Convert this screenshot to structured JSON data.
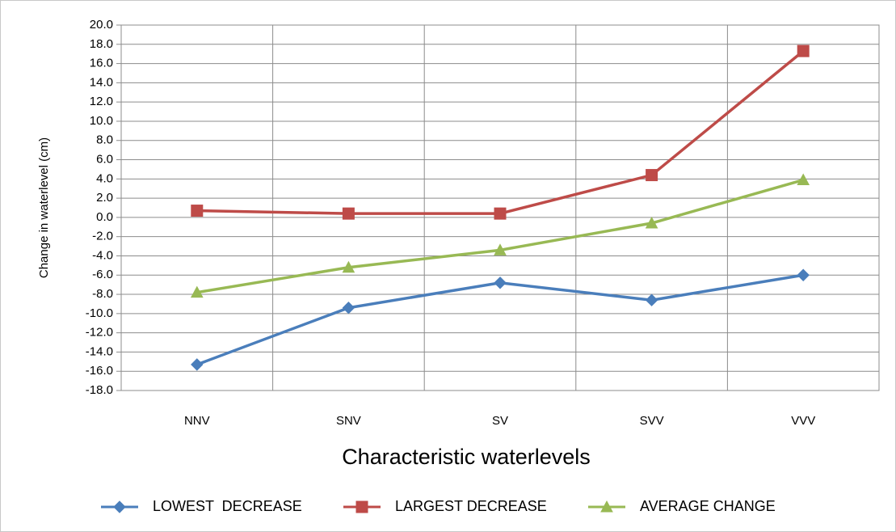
{
  "chart_data": {
    "type": "line",
    "x_label": "Characteristic waterlevels",
    "y_label": "Change in waterlevel (cm)",
    "categories": [
      "NNV",
      "SNV",
      "SV",
      "SVV",
      "VVV"
    ],
    "series": [
      {
        "name": "LOWEST  DECREASE",
        "color": "#4a7ebb",
        "marker": "diamond",
        "values": [
          -15.3,
          -9.4,
          -6.8,
          -8.6,
          -6.0
        ]
      },
      {
        "name": "LARGEST DECREASE",
        "color": "#be4b48",
        "marker": "square",
        "values": [
          0.7,
          0.4,
          0.4,
          4.4,
          17.3
        ]
      },
      {
        "name": "AVERAGE CHANGE",
        "color": "#98b954",
        "marker": "triangle",
        "values": [
          -7.8,
          -5.2,
          -3.4,
          -0.6,
          3.9
        ]
      }
    ],
    "ylim": [
      -18,
      20
    ],
    "yticks": [
      {
        "value": 20,
        "label": "20.0"
      },
      {
        "value": 18,
        "label": "18.0"
      },
      {
        "value": 16,
        "label": "16.0"
      },
      {
        "value": 14,
        "label": "14.0"
      },
      {
        "value": 12,
        "label": "12.0"
      },
      {
        "value": 10,
        "label": "10.0"
      },
      {
        "value": 8,
        "label": "8.0"
      },
      {
        "value": 6,
        "label": "6.0"
      },
      {
        "value": 4,
        "label": "4.0"
      },
      {
        "value": 2,
        "label": "2.0"
      },
      {
        "value": 0,
        "label": "0.0"
      },
      {
        "value": -2,
        "label": "-2.0"
      },
      {
        "value": -4,
        "label": "-4.0"
      },
      {
        "value": -6,
        "label": "-6.0"
      },
      {
        "value": -8,
        "label": "-8.0"
      },
      {
        "value": -10,
        "label": "-10.0"
      },
      {
        "value": -12,
        "label": "-12.0"
      },
      {
        "value": -14,
        "label": "-14.0"
      },
      {
        "value": -16,
        "label": "-16.0"
      },
      {
        "value": -18,
        "label": "-18.0"
      }
    ],
    "grid": true,
    "legend": "bottom"
  }
}
